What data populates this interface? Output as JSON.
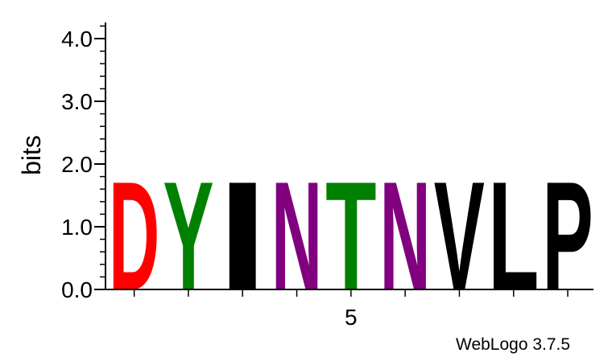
{
  "chart_data": {
    "type": "sequence-logo",
    "ylabel": "bits",
    "ylim": [
      0,
      4.3
    ],
    "y_ticks": [
      "0.0",
      "1.0",
      "2.0",
      "3.0",
      "4.0"
    ],
    "x_ticks": [
      {
        "position": 5,
        "label": "5"
      }
    ],
    "positions": [
      1,
      2,
      3,
      4,
      5,
      6,
      7,
      8,
      9
    ],
    "letters": [
      {
        "position": 1,
        "letter": "D",
        "bits": 1.78,
        "color": "#ff0000"
      },
      {
        "position": 2,
        "letter": "Y",
        "bits": 1.78,
        "color": "#008000"
      },
      {
        "position": 3,
        "letter": "I",
        "bits": 1.78,
        "color": "#000000"
      },
      {
        "position": 4,
        "letter": "N",
        "bits": 1.78,
        "color": "#800080"
      },
      {
        "position": 5,
        "letter": "T",
        "bits": 1.78,
        "color": "#008000"
      },
      {
        "position": 6,
        "letter": "N",
        "bits": 1.78,
        "color": "#800080"
      },
      {
        "position": 7,
        "letter": "V",
        "bits": 1.78,
        "color": "#000000"
      },
      {
        "position": 8,
        "letter": "L",
        "bits": 1.78,
        "color": "#000000"
      },
      {
        "position": 9,
        "letter": "P",
        "bits": 1.78,
        "color": "#000000"
      }
    ]
  },
  "footer": {
    "text": "WebLogo 3.7.5"
  }
}
